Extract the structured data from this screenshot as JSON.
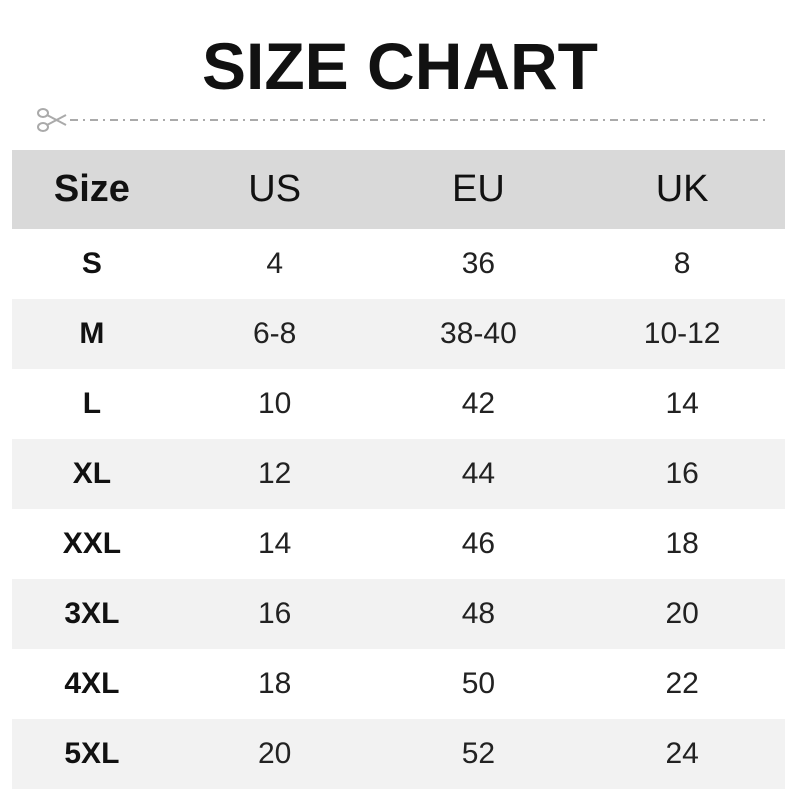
{
  "title": "SIZE CHART",
  "icons": {
    "cut_line": "scissors-icon"
  },
  "colors": {
    "header_bg": "#d9d9d9",
    "alt_row_bg": "#f2f2f2",
    "dash": "#aaaaaa"
  },
  "table": {
    "headers": [
      "Size",
      "US",
      "EU",
      "UK"
    ],
    "rows": [
      [
        "S",
        "4",
        "36",
        "8"
      ],
      [
        "M",
        "6-8",
        "38-40",
        "10-12"
      ],
      [
        "L",
        "10",
        "42",
        "14"
      ],
      [
        "XL",
        "12",
        "44",
        "16"
      ],
      [
        "XXL",
        "14",
        "46",
        "18"
      ],
      [
        "3XL",
        "16",
        "48",
        "20"
      ],
      [
        "4XL",
        "18",
        "50",
        "22"
      ],
      [
        "5XL",
        "20",
        "52",
        "24"
      ]
    ]
  }
}
